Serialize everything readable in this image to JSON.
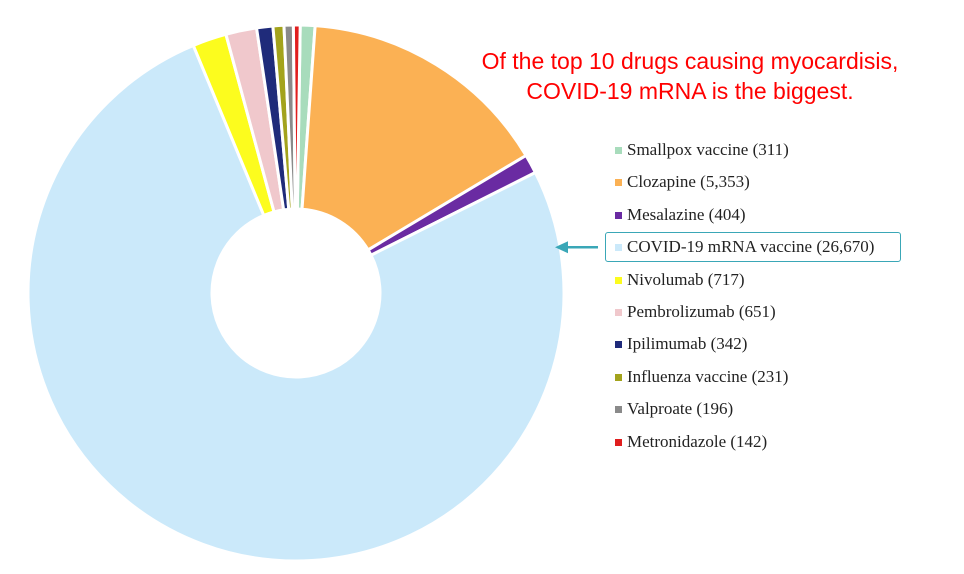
{
  "annotation": {
    "line1": "Of the top 10 drugs causing myocardisis,",
    "line2": "COVID-19 mRNA is the biggest.",
    "color": "#ff0000"
  },
  "chart_data": {
    "type": "pie",
    "donut": true,
    "start_slice": "Smallpox vaccine",
    "highlighted_category": "COVID-19 mRNA vaccine",
    "highlight_color": "#3aa7b7",
    "legend_placement": "right",
    "categories": [
      "Smallpox vaccine",
      "Clozapine",
      "Mesalazine",
      "COVID-19 mRNA vaccine",
      "Nivolumab",
      "Pembrolizumab",
      "Ipilimumab",
      "Influenza vaccine",
      "Valproate",
      "Metronidazole"
    ],
    "values": [
      311,
      5353,
      404,
      26670,
      717,
      651,
      342,
      231,
      196,
      142
    ],
    "colors": [
      "#a8dcbc",
      "#fbb154",
      "#6a2ba2",
      "#cbe9fa",
      "#fcfc1e",
      "#f0c8cc",
      "#1f2b7a",
      "#a3a31c",
      "#8a8a8a",
      "#e01e1e"
    ],
    "legend_labels": [
      "Smallpox vaccine (311)",
      "Clozapine (5,353)",
      "Mesalazine (404)",
      "COVID-19 mRNA vaccine (26,670)",
      "Nivolumab (717)",
      "Pembrolizumab (651)",
      "Ipilimumab (342)",
      "Influenza vaccine (231)",
      "Valproate (196)",
      "Metronidazole (142)"
    ]
  }
}
